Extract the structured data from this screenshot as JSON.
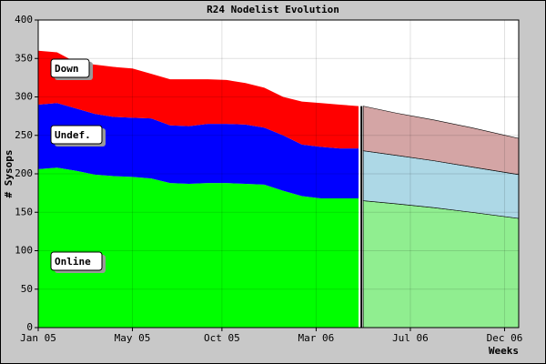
{
  "chart_data": {
    "type": "stacked_area",
    "title": "R24 Nodelist Evolution",
    "xlabel": "Weeks",
    "ylabel": "# Sysops",
    "x": [
      0,
      4,
      8,
      12,
      16,
      20,
      24,
      28,
      32,
      36,
      40,
      44,
      48,
      52,
      56,
      60,
      64,
      68,
      69,
      76,
      84,
      92,
      102
    ],
    "xlim": [
      0,
      102
    ],
    "xticks": [
      {
        "value": 0,
        "label": "Jan 05"
      },
      {
        "value": 20,
        "label": "May 05"
      },
      {
        "value": 39,
        "label": "Oct 05"
      },
      {
        "value": 59,
        "label": "Mar 06"
      },
      {
        "value": 79,
        "label": "Jul 06"
      },
      {
        "value": 99,
        "label": "Dec 06"
      }
    ],
    "ylim": [
      0,
      400
    ],
    "yticks": [
      0,
      50,
      100,
      150,
      200,
      250,
      300,
      350,
      400
    ],
    "grid": true,
    "forecast_from": 69,
    "series": [
      {
        "name": "Online",
        "color": "#00ff00",
        "forecast_color": "#90ee90",
        "values": [
          206,
          208,
          204,
          199,
          197,
          196,
          194,
          188,
          187,
          188,
          188,
          187,
          186,
          178,
          171,
          168,
          168,
          168,
          165,
          161,
          156,
          150,
          142
        ]
      },
      {
        "name": "Undef.",
        "color": "#0000ff",
        "forecast_color": "#add8e6",
        "values": [
          84,
          84,
          81,
          79,
          77,
          77,
          78,
          75,
          75,
          77,
          77,
          77,
          74,
          72,
          67,
          67,
          65,
          65,
          65,
          63,
          61,
          59,
          57
        ]
      },
      {
        "name": "Down",
        "color": "#ff0000",
        "forecast_color": "#d4a5a5",
        "values": [
          70,
          66,
          60,
          64,
          65,
          64,
          58,
          60,
          61,
          58,
          57,
          54,
          52,
          50,
          56,
          57,
          57,
          55,
          58,
          55,
          53,
          51,
          47
        ]
      }
    ]
  }
}
